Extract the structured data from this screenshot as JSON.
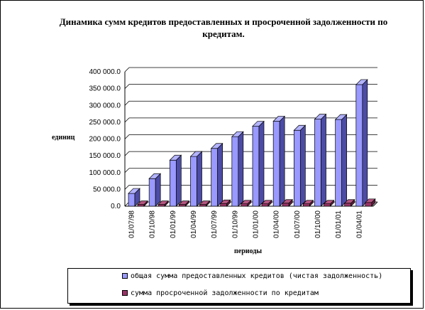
{
  "colors": {
    "series1_front": "#9999ff",
    "series1_side": "#4c4ca6",
    "series1_top": "#b3b3ff",
    "series2_front": "#993366",
    "series2_side": "#5c1f3d",
    "series2_top": "#b3557f",
    "grid": "#000000"
  },
  "chart_data": {
    "type": "bar",
    "title": "Динамика сумм кредитов предоставленных и просроченной задолженности по кредитам.",
    "ylabel": "единиц",
    "xlabel": "периоды",
    "ylim": [
      0,
      400000
    ],
    "yticks": [
      "0.0",
      "50 000.0",
      "100 000.0",
      "150 000.0",
      "200 000.0",
      "250 000.0",
      "300 000.0",
      "350 000.0",
      "400 000.0"
    ],
    "grid": true,
    "legend_position": "bottom",
    "categories": [
      "01/07/98",
      "01/10/98",
      "01/01/99",
      "01/04/99",
      "01/07/99",
      "01/10/99",
      "01/01/00",
      "01/04/00",
      "01/07/00",
      "01/10/00",
      "01/01/01",
      "01/04/01"
    ],
    "series": [
      {
        "name": "общая сумма предоставленных кредитов (чистая задолженность)",
        "values": [
          38000,
          82000,
          137000,
          148000,
          172000,
          207000,
          238000,
          253000,
          226000,
          259000,
          258000,
          362000
        ]
      },
      {
        "name": "сумма просроченной задолженности по кредитам",
        "values": [
          5000,
          5000,
          5000,
          5000,
          8000,
          7000,
          7000,
          9000,
          7000,
          7000,
          9000,
          11000
        ]
      }
    ]
  }
}
